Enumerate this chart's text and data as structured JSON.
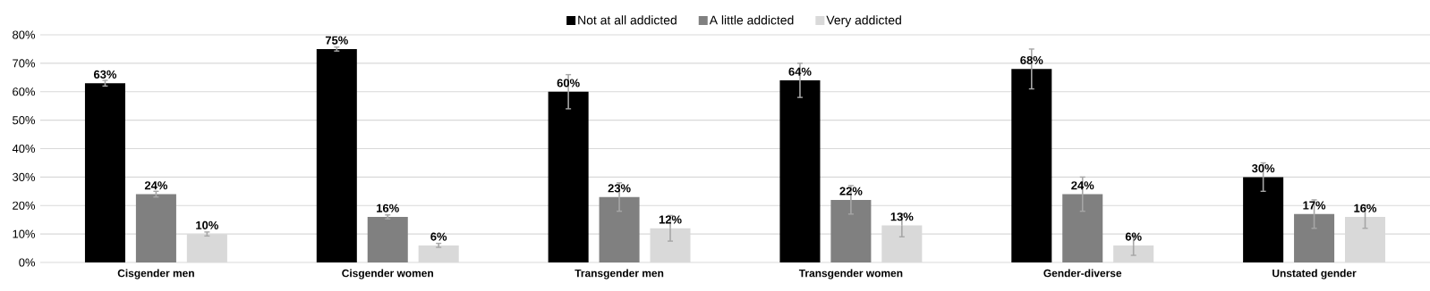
{
  "chart_data": {
    "type": "bar",
    "categories": [
      "Cisgender men",
      "Cisgender women",
      "Transgender men",
      "Transgender women",
      "Gender-diverse",
      "Unstated gender"
    ],
    "series": [
      {
        "name": "Not at all addicted",
        "color": "#000000",
        "values": [
          63,
          75,
          60,
          64,
          68,
          30
        ],
        "errors": [
          1,
          0.7,
          6,
          6,
          7,
          5
        ],
        "value_labels": [
          "63%",
          "75%",
          "60%",
          "64%",
          "68%",
          "30%"
        ]
      },
      {
        "name": "A little addicted",
        "color": "#808080",
        "values": [
          24,
          16,
          23,
          22,
          24,
          17
        ],
        "errors": [
          1,
          0.7,
          5,
          5,
          6,
          5
        ],
        "value_labels": [
          "24%",
          "16%",
          "23%",
          "22%",
          "24%",
          "17%"
        ]
      },
      {
        "name": "Very addicted",
        "color": "#d9d9d9",
        "values": [
          10,
          6,
          12,
          13,
          6,
          16
        ],
        "errors": [
          0.7,
          0.7,
          4.5,
          4,
          3.5,
          4
        ],
        "value_labels": [
          "10%",
          "6%",
          "12%",
          "13%",
          "6%",
          "16%"
        ]
      }
    ],
    "ylim": [
      0,
      80
    ],
    "yticks": [
      {
        "value": 0,
        "label": "0%"
      },
      {
        "value": 10,
        "label": "10%"
      },
      {
        "value": 20,
        "label": "20%"
      },
      {
        "value": 30,
        "label": "30%"
      },
      {
        "value": 40,
        "label": "40%"
      },
      {
        "value": 50,
        "label": "50%"
      },
      {
        "value": 60,
        "label": "60%"
      },
      {
        "value": 70,
        "label": "70%"
      },
      {
        "value": 80,
        "label": "80%"
      }
    ],
    "grid": "y",
    "legend": "top"
  }
}
